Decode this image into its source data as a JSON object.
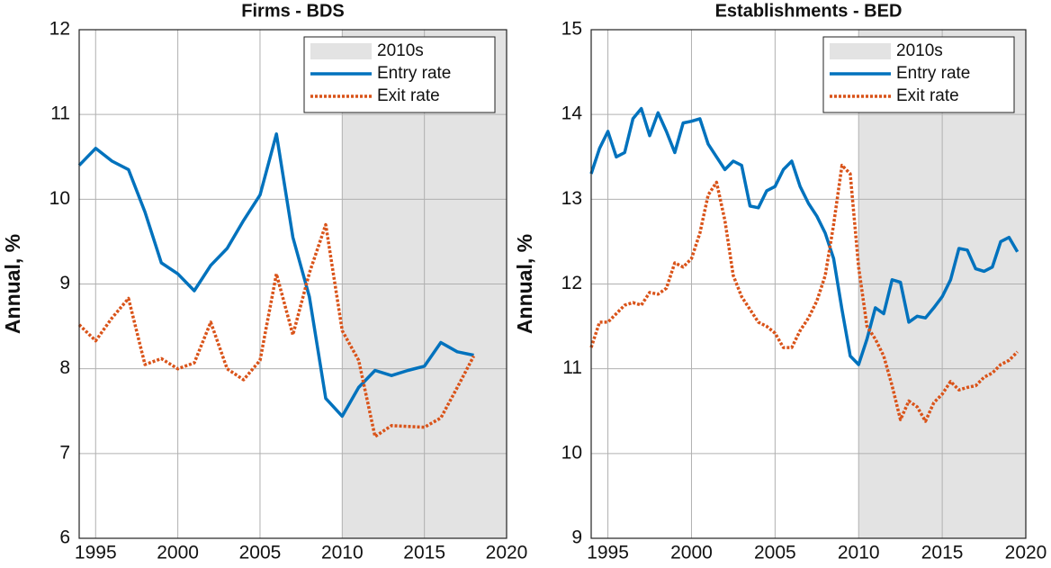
{
  "chart_data": [
    {
      "type": "line",
      "title": "Firms - BDS",
      "ylabel": "Annual, %",
      "x": [
        1994,
        1995,
        1996,
        1997,
        1998,
        1999,
        2000,
        2001,
        2002,
        2003,
        2004,
        2005,
        2006,
        2007,
        2008,
        2009,
        2010,
        2011,
        2012,
        2013,
        2014,
        2015,
        2016,
        2017,
        2018
      ],
      "series": [
        {
          "name": "Entry rate",
          "color": "#0072bd",
          "style": "solid",
          "values": [
            10.4,
            10.6,
            10.45,
            10.35,
            9.85,
            9.25,
            9.12,
            8.92,
            9.22,
            9.42,
            9.75,
            10.05,
            10.77,
            9.55,
            8.85,
            7.65,
            7.44,
            7.78,
            7.98,
            7.92,
            7.98,
            8.03,
            8.31,
            8.2,
            8.16
          ]
        },
        {
          "name": "Exit rate",
          "color": "#d95319",
          "style": "dotted",
          "values": [
            8.52,
            8.33,
            8.6,
            8.83,
            8.05,
            8.12,
            8.0,
            8.07,
            8.55,
            8.0,
            7.87,
            8.1,
            9.12,
            8.4,
            9.13,
            9.7,
            8.45,
            8.1,
            7.2,
            7.33,
            7.32,
            7.31,
            7.42,
            7.78,
            8.15
          ]
        }
      ],
      "shade": {
        "name": "2010s",
        "range": [
          2010,
          2020
        ],
        "color": "#e3e3e3"
      },
      "xlim": [
        1994,
        2020
      ],
      "xticks": [
        1995,
        2000,
        2005,
        2010,
        2015,
        2020
      ],
      "ylim": [
        6,
        12
      ],
      "yticks": [
        6,
        7,
        8,
        9,
        10,
        11,
        12
      ],
      "grid": true,
      "legend": "top-right"
    },
    {
      "type": "line",
      "title": "Establishments - BED",
      "ylabel": "Annual, %",
      "x": [
        1994,
        1994.5,
        1995,
        1995.5,
        1996,
        1996.5,
        1997,
        1997.5,
        1998,
        1998.5,
        1999,
        1999.5,
        2000,
        2000.5,
        2001,
        2001.5,
        2002,
        2002.5,
        2003,
        2003.5,
        2004,
        2004.5,
        2005,
        2005.5,
        2006,
        2006.5,
        2007,
        2007.5,
        2008,
        2008.5,
        2009,
        2009.5,
        2010,
        2010.5,
        2011,
        2011.5,
        2012,
        2012.5,
        2013,
        2013.5,
        2014,
        2014.5,
        2015,
        2015.5,
        2016,
        2016.5,
        2017,
        2017.5,
        2018,
        2018.5,
        2019,
        2019.5
      ],
      "series": [
        {
          "name": "Entry rate",
          "color": "#0072bd",
          "style": "solid",
          "values": [
            13.3,
            13.6,
            13.8,
            13.5,
            13.55,
            13.95,
            14.07,
            13.75,
            14.02,
            13.8,
            13.55,
            13.9,
            13.92,
            13.95,
            13.65,
            13.5,
            13.35,
            13.45,
            13.4,
            12.92,
            12.9,
            13.1,
            13.15,
            13.35,
            13.45,
            13.15,
            12.95,
            12.8,
            12.6,
            12.3,
            11.7,
            11.15,
            11.05,
            11.35,
            11.72,
            11.65,
            12.05,
            12.02,
            11.55,
            11.62,
            11.6,
            11.72,
            11.85,
            12.05,
            12.42,
            12.4,
            12.18,
            12.15,
            12.2,
            12.5,
            12.55,
            12.38
          ]
        },
        {
          "name": "Exit rate",
          "color": "#d95319",
          "style": "dotted",
          "values": [
            11.25,
            11.55,
            11.55,
            11.65,
            11.75,
            11.78,
            11.75,
            11.9,
            11.88,
            11.95,
            12.25,
            12.2,
            12.3,
            12.6,
            13.05,
            13.2,
            12.75,
            12.1,
            11.85,
            11.7,
            11.55,
            11.5,
            11.42,
            11.25,
            11.25,
            11.45,
            11.6,
            11.8,
            12.1,
            12.7,
            13.4,
            13.3,
            12.2,
            11.5,
            11.35,
            11.15,
            10.8,
            10.4,
            10.62,
            10.55,
            10.38,
            10.6,
            10.7,
            10.85,
            10.75,
            10.78,
            10.8,
            10.9,
            10.95,
            11.05,
            11.1,
            11.2
          ]
        }
      ],
      "shade": {
        "name": "2010s",
        "range": [
          2010,
          2020
        ],
        "color": "#e3e3e3"
      },
      "xlim": [
        1994,
        2020
      ],
      "xticks": [
        1995,
        2000,
        2005,
        2010,
        2015,
        2020
      ],
      "ylim": [
        9,
        15
      ],
      "yticks": [
        9,
        10,
        11,
        12,
        13,
        14,
        15
      ],
      "grid": true,
      "legend": "top-right"
    }
  ]
}
